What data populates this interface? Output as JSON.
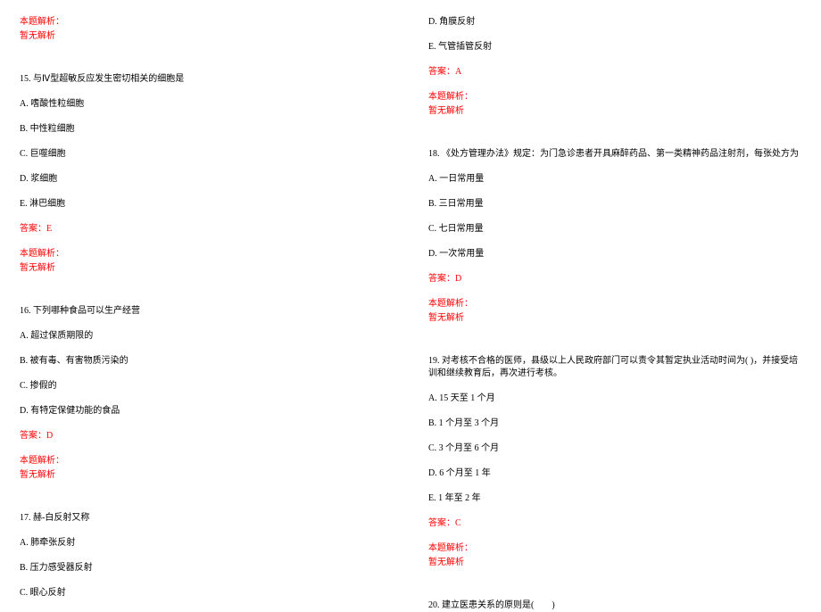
{
  "colors": {
    "text": "#000000",
    "red": "#ff0000",
    "background": "#ffffff"
  },
  "typography": {
    "font_family": "SimSun",
    "font_size_pt": 8,
    "line_spacing": 14
  },
  "left_column": {
    "q14_parse_label": "本题解析：",
    "q14_parse_text": "暂无解析",
    "q15": {
      "stem": "15. 与Ⅳ型超敏反应发生密切相关的细胞是",
      "a": "A. 嗜酸性粒细胞",
      "b": "B. 中性粒细胞",
      "c": "C. 巨噬细胞",
      "d": "D. 浆细胞",
      "e": "E. 淋巴细胞",
      "answer": "答案：E",
      "parse_label": "本题解析：",
      "parse_text": "暂无解析"
    },
    "q16": {
      "stem": "16. 下列哪种食品可以生产经营",
      "a": "A. 超过保质期限的",
      "b": "B. 被有毒、有害物质污染的",
      "c": "C. 掺假的",
      "d": "D. 有特定保健功能的食品",
      "answer": "答案：D",
      "parse_label": "本题解析：",
      "parse_text": "暂无解析"
    },
    "q17": {
      "stem": "17. 赫-白反射又称",
      "a": "A. 肺牵张反射",
      "b": "B. 压力感受器反射",
      "c": "C. 眼心反射"
    }
  },
  "right_column": {
    "q17_cont": {
      "d": "D. 角膜反射",
      "e": "E. 气管插管反射",
      "answer": "答案：A",
      "parse_label": "本题解析：",
      "parse_text": "暂无解析"
    },
    "q18": {
      "stem": "18. 《处方管理办法》规定：为门急诊患者开具麻醉药品、第一类精神药品注射剂，每张处方为",
      "a": "A. 一日常用量",
      "b": "B. 三日常用量",
      "c": "C. 七日常用量",
      "d": "D. 一次常用量",
      "answer": "答案：D",
      "parse_label": "本题解析：",
      "parse_text": "暂无解析"
    },
    "q19": {
      "stem": "19. 对考核不合格的医师，县级以上人民政府部门可以责令其暂定执业活动时间为( )，并接受培训和继续教育后，再次进行考核。",
      "a": "A. 15 天至 1 个月",
      "b": "B. 1 个月至 3 个月",
      "c": "C. 3 个月至 6 个月",
      "d": "D. 6 个月至 1 年",
      "e": "E. 1 年至 2 年",
      "answer": "答案：C",
      "parse_label": "本题解析：",
      "parse_text": "暂无解析"
    },
    "q20": {
      "stem": "20. 建立医患关系的原则是(　　)"
    }
  }
}
